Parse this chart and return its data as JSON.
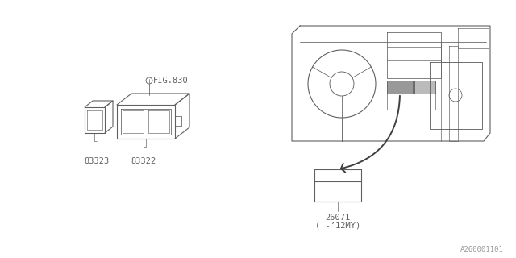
{
  "bg_color": "#ffffff",
  "line_color": "#606060",
  "text_color": "#606060",
  "fig_label": "FIG.830",
  "part_83322": "83322",
  "part_83323": "83323",
  "part_26071": "26071",
  "part_26071_sub": "( -’12MY)",
  "watermark": "A260001101",
  "font_size": 7.5,
  "watermark_size": 6.5
}
